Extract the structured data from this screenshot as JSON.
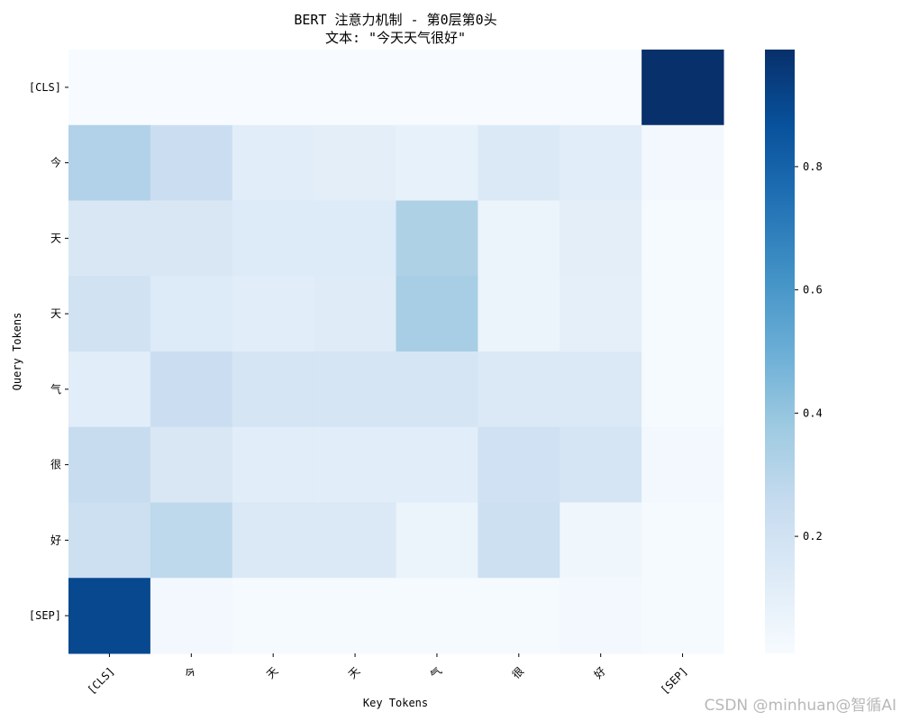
{
  "chart_data": {
    "type": "heatmap",
    "title_line1": "BERT 注意力机制 - 第0层第0头",
    "title_line2": "文本: \"今天天气很好\"",
    "xlabel": "Key Tokens",
    "ylabel": "Query Tokens",
    "x_tokens": [
      "[CLS]",
      "今",
      "天",
      "天",
      "气",
      "很",
      "好",
      "[SEP]"
    ],
    "y_tokens": [
      "[CLS]",
      "今",
      "天",
      "天",
      "气",
      "很",
      "好",
      "[SEP]"
    ],
    "values": [
      [
        0.01,
        0.01,
        0.01,
        0.01,
        0.01,
        0.01,
        0.01,
        0.99
      ],
      [
        0.32,
        0.23,
        0.12,
        0.11,
        0.09,
        0.15,
        0.12,
        0.03
      ],
      [
        0.16,
        0.16,
        0.14,
        0.14,
        0.33,
        0.07,
        0.11,
        0.02
      ],
      [
        0.2,
        0.14,
        0.12,
        0.13,
        0.35,
        0.07,
        0.1,
        0.02
      ],
      [
        0.12,
        0.23,
        0.18,
        0.18,
        0.18,
        0.15,
        0.15,
        0.02
      ],
      [
        0.25,
        0.16,
        0.12,
        0.12,
        0.12,
        0.21,
        0.18,
        0.03
      ],
      [
        0.22,
        0.28,
        0.15,
        0.15,
        0.07,
        0.22,
        0.05,
        0.02
      ],
      [
        0.9,
        0.03,
        0.02,
        0.02,
        0.02,
        0.02,
        0.03,
        0.02
      ]
    ],
    "colorbar": {
      "min": 0.01,
      "max": 0.99,
      "ticks": [
        0.2,
        0.4,
        0.6,
        0.8
      ],
      "tick_labels": [
        "0.2",
        "0.4",
        "0.6",
        "0.8"
      ],
      "colormap": "Blues"
    }
  },
  "watermark": "CSDN @minhuan@智循AI"
}
